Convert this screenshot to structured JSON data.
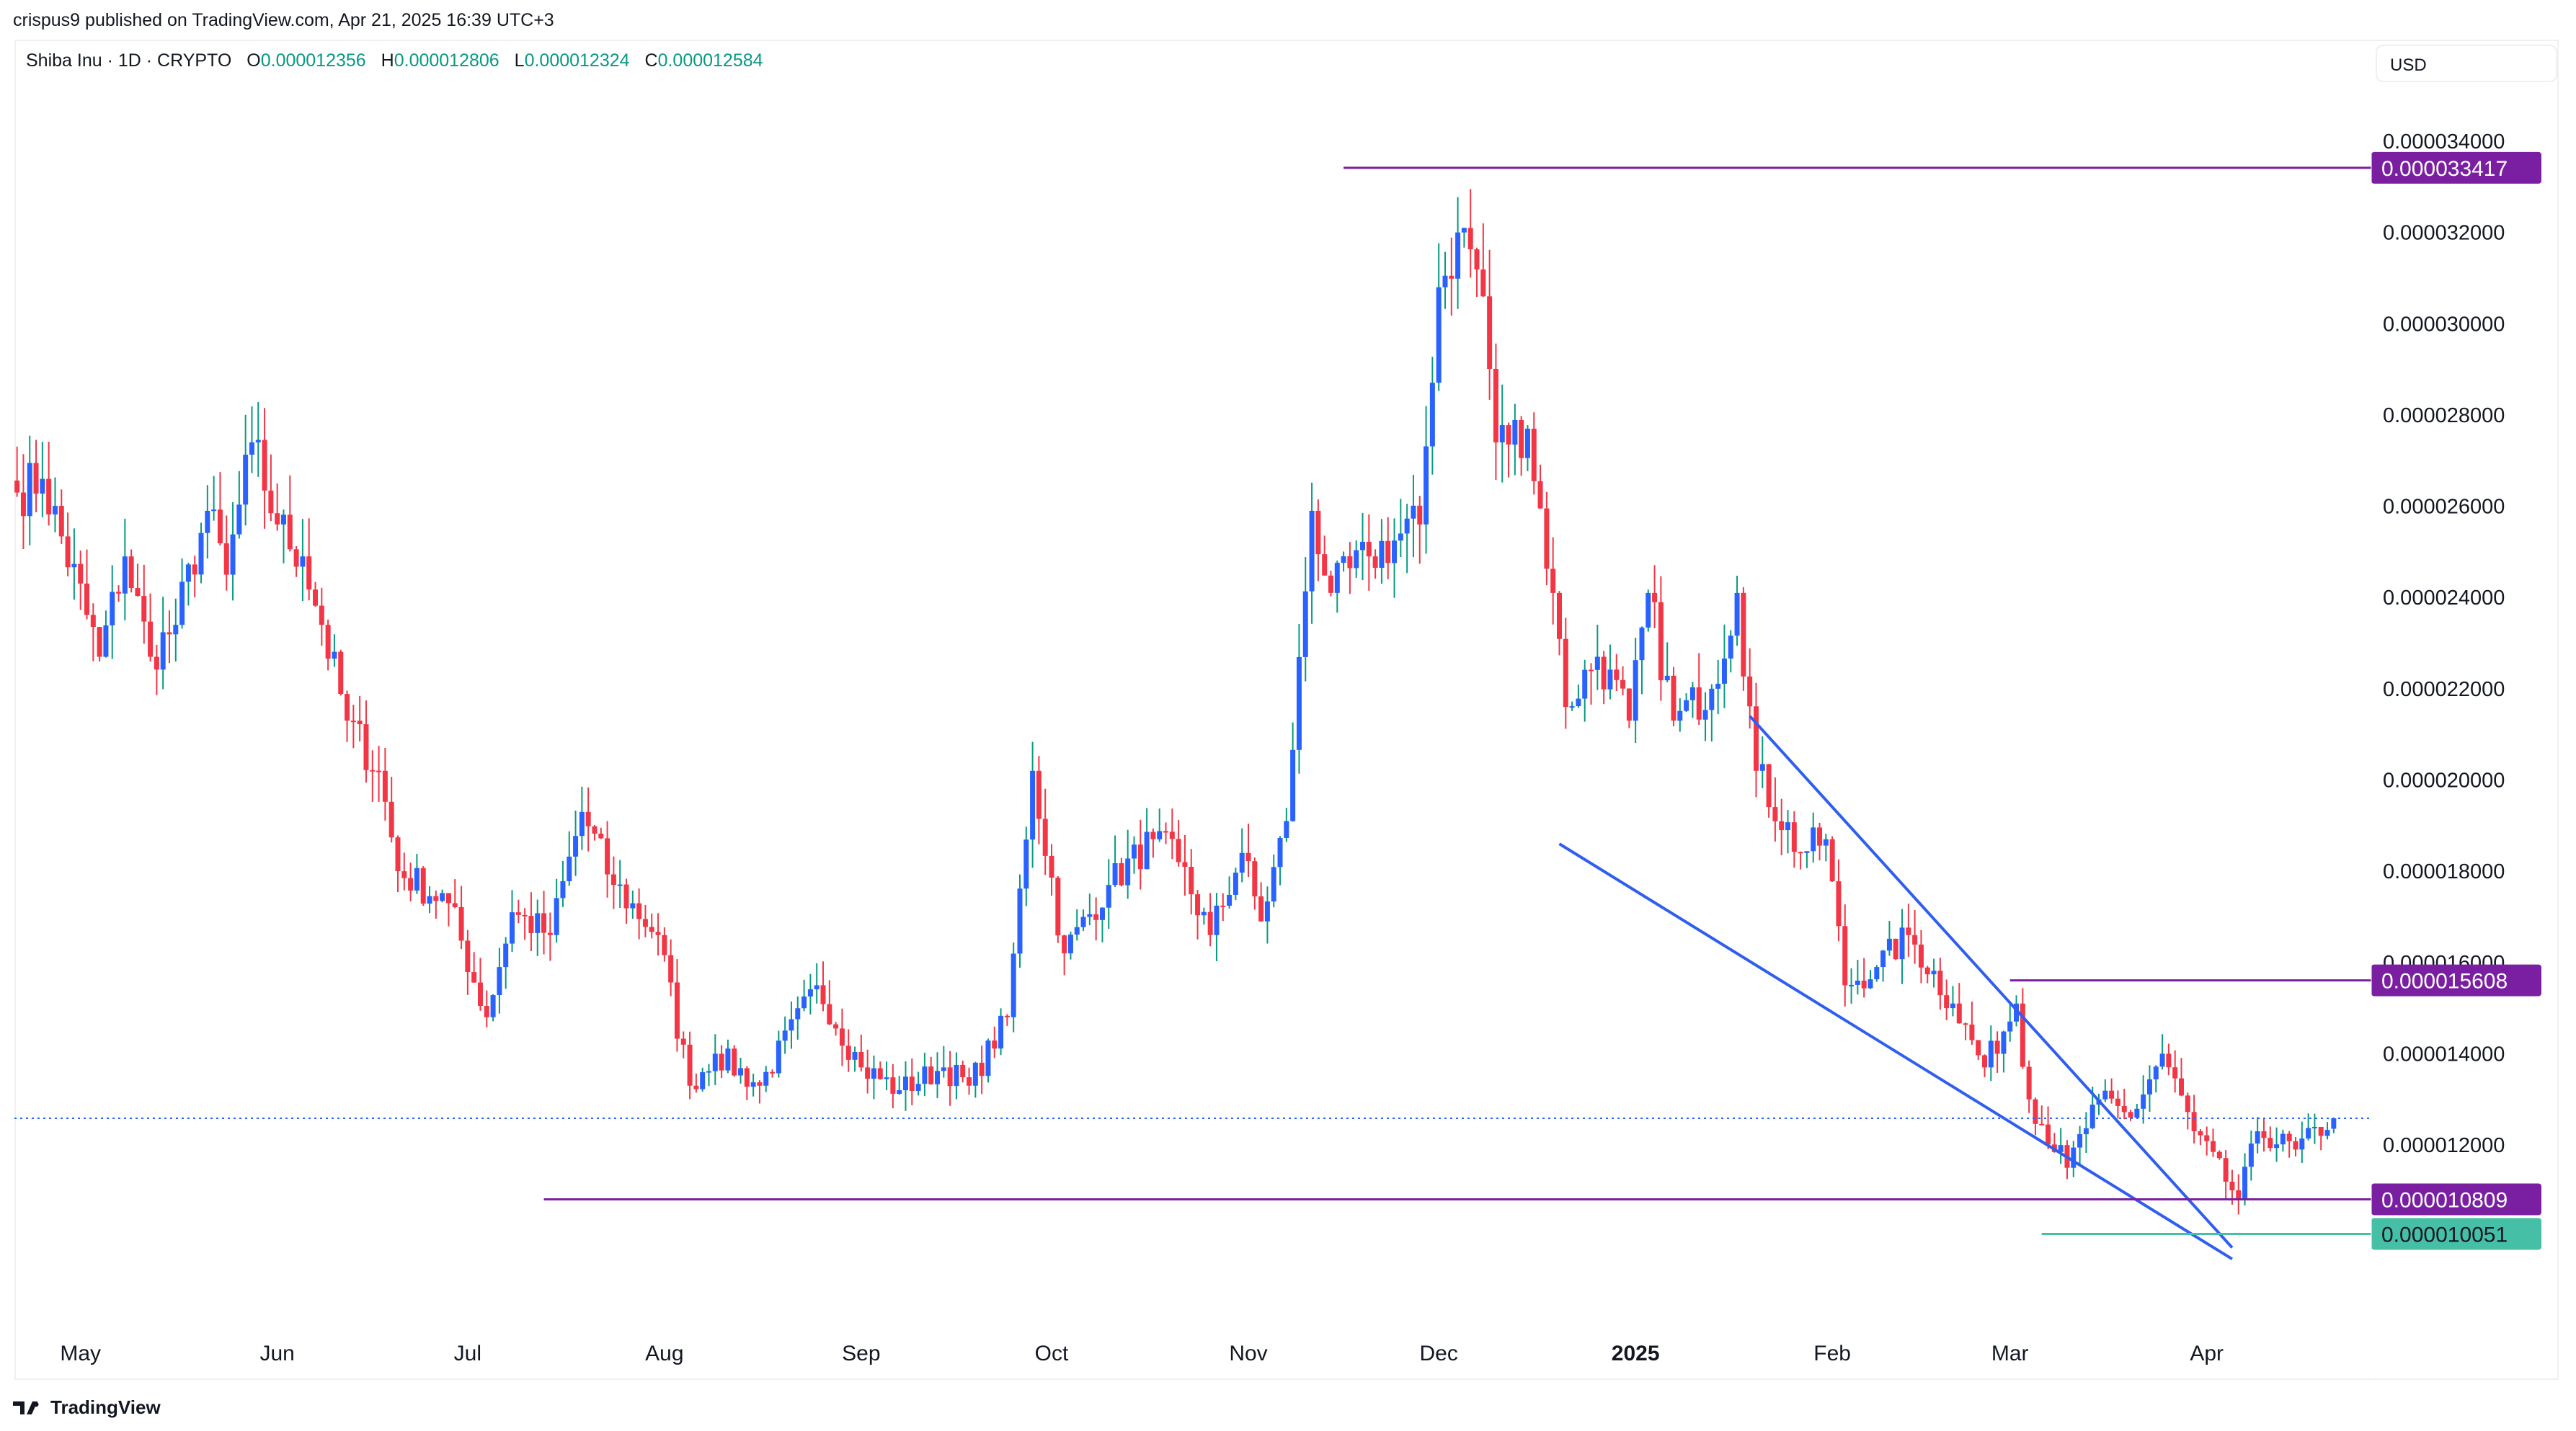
{
  "header": {
    "publisher_line": "crispus9 published on TradingView.com, Apr 21, 2025 16:39 UTC+3"
  },
  "legend": {
    "symbol": "Shiba Inu · 1D · CRYPTO",
    "o_label": "O",
    "o": "0.000012356",
    "h_label": "H",
    "h": "0.000012806",
    "l_label": "L",
    "l": "0.000012324",
    "c_label": "C",
    "c": "0.000012584"
  },
  "currency": "USD",
  "footer": {
    "brand": "TradingView"
  },
  "colors": {
    "up_body": "#2962ff",
    "up_wick": "#089981",
    "down": "#f23645",
    "level": "#7b1fa2",
    "support": "#45bfa6",
    "trend": "#2f5ef0"
  },
  "chart_data": {
    "type": "candlestick",
    "title": "Shiba Inu · 1D · CRYPTO",
    "unit": "USD (×1e-6 in close values)",
    "ylim": [
      9.0,
      35.0
    ],
    "y_ticks": [
      "0.000034000",
      "0.000032000",
      "0.000030000",
      "0.000028000",
      "0.000026000",
      "0.000024000",
      "0.000022000",
      "0.000020000",
      "0.000018000",
      "0.000016000",
      "0.000014000",
      "0.000012000"
    ],
    "y_tick_values": [
      34,
      32,
      30,
      28,
      26,
      24,
      22,
      20,
      18,
      16,
      14,
      12
    ],
    "x_ticks": [
      {
        "label": "May",
        "date": "2024-05-01"
      },
      {
        "label": "Jun",
        "date": "2024-06-01"
      },
      {
        "label": "Jul",
        "date": "2024-07-01"
      },
      {
        "label": "Aug",
        "date": "2024-08-01"
      },
      {
        "label": "Sep",
        "date": "2024-09-01"
      },
      {
        "label": "Oct",
        "date": "2024-10-01"
      },
      {
        "label": "Nov",
        "date": "2024-11-01"
      },
      {
        "label": "Dec",
        "date": "2024-12-01"
      },
      {
        "label": "2025",
        "date": "2025-01-01",
        "bold": true
      },
      {
        "label": "Feb",
        "date": "2025-02-01"
      },
      {
        "label": "Mar",
        "date": "2025-03-01"
      },
      {
        "label": "Apr",
        "date": "2025-04-01"
      }
    ],
    "close_keypoints": [
      [
        "2024-04-21",
        26.3
      ],
      [
        "2024-04-25",
        26.6
      ],
      [
        "2024-05-04",
        22.7
      ],
      [
        "2024-05-08",
        24.9
      ],
      [
        "2024-05-12",
        22.7
      ],
      [
        "2024-05-16",
        23.4
      ],
      [
        "2024-05-21",
        25.9
      ],
      [
        "2024-05-24",
        24.5
      ],
      [
        "2024-05-28",
        27.4
      ],
      [
        "2024-06-01",
        25.6
      ],
      [
        "2024-06-05",
        24.9
      ],
      [
        "2024-06-08",
        23.4
      ],
      [
        "2024-06-12",
        21.3
      ],
      [
        "2024-06-17",
        20.2
      ],
      [
        "2024-06-20",
        18.0
      ],
      [
        "2024-06-28",
        17.3
      ],
      [
        "2024-07-04",
        14.8
      ],
      [
        "2024-07-08",
        17.1
      ],
      [
        "2024-07-14",
        16.6
      ],
      [
        "2024-07-19",
        19.3
      ],
      [
        "2024-07-24",
        17.7
      ],
      [
        "2024-07-31",
        16.6
      ],
      [
        "2024-08-05",
        13.3
      ],
      [
        "2024-08-09",
        14.0
      ],
      [
        "2024-08-16",
        13.3
      ],
      [
        "2024-08-25",
        15.5
      ],
      [
        "2024-09-01",
        13.7
      ],
      [
        "2024-09-07",
        13.2
      ],
      [
        "2024-09-14",
        13.7
      ],
      [
        "2024-09-18",
        13.3
      ],
      [
        "2024-09-24",
        14.8
      ],
      [
        "2024-09-28",
        20.2
      ],
      [
        "2024-10-03",
        16.2
      ],
      [
        "2024-10-10",
        17.7
      ],
      [
        "2024-10-17",
        18.7
      ],
      [
        "2024-10-21",
        18.2
      ],
      [
        "2024-10-26",
        16.6
      ],
      [
        "2024-10-31",
        18.4
      ],
      [
        "2024-11-03",
        16.9
      ],
      [
        "2024-11-07",
        19.1
      ],
      [
        "2024-11-11",
        25.9
      ],
      [
        "2024-11-14",
        24.1
      ],
      [
        "2024-11-20",
        24.9
      ],
      [
        "2024-11-28",
        25.6
      ],
      [
        "2024-12-01",
        30.8
      ],
      [
        "2024-12-05",
        32.1
      ],
      [
        "2024-12-08",
        30.6
      ],
      [
        "2024-12-10",
        27.4
      ],
      [
        "2024-12-15",
        27.7
      ],
      [
        "2024-12-19",
        24.1
      ],
      [
        "2024-12-21",
        21.6
      ],
      [
        "2024-12-26",
        22.7
      ],
      [
        "2024-12-31",
        21.3
      ],
      [
        "2025-01-03",
        24.1
      ],
      [
        "2025-01-07",
        21.3
      ],
      [
        "2025-01-13",
        22.0
      ],
      [
        "2025-01-17",
        24.1
      ],
      [
        "2025-01-20",
        20.2
      ],
      [
        "2025-01-27",
        18.4
      ],
      [
        "2025-01-31",
        18.7
      ],
      [
        "2025-02-03",
        15.5
      ],
      [
        "2025-02-08",
        15.9
      ],
      [
        "2025-02-13",
        16.6
      ],
      [
        "2025-02-20",
        15.1
      ],
      [
        "2025-02-25",
        13.7
      ],
      [
        "2025-03-02",
        15.1
      ],
      [
        "2025-03-04",
        13.0
      ],
      [
        "2025-03-10",
        11.5
      ],
      [
        "2025-03-15",
        13.0
      ],
      [
        "2025-03-20",
        12.6
      ],
      [
        "2025-03-25",
        14.0
      ],
      [
        "2025-03-30",
        12.3
      ],
      [
        "2025-04-06",
        10.8
      ],
      [
        "2025-04-09",
        12.3
      ],
      [
        "2025-04-15",
        11.9
      ],
      [
        "2025-04-21",
        12.584
      ]
    ],
    "last_price": 12.584,
    "levels": [
      {
        "label": "0.000033417",
        "value": 33.417,
        "from": "2024-11-16",
        "color": "level"
      },
      {
        "label": "0.000015608",
        "value": 15.608,
        "from": "2025-03-01",
        "color": "level"
      },
      {
        "label": "0.000010809",
        "value": 10.809,
        "from": "2024-07-13",
        "color": "level"
      },
      {
        "label": "0.000010051",
        "value": 10.051,
        "from": "2025-03-06",
        "color": "support"
      }
    ],
    "trendlines": [
      {
        "from": [
          "2024-12-20",
          18.6
        ],
        "to": [
          "2025-04-05",
          9.5
        ]
      },
      {
        "from": [
          "2025-01-19",
          21.4
        ],
        "to": [
          "2025-04-05",
          9.75
        ]
      }
    ]
  }
}
